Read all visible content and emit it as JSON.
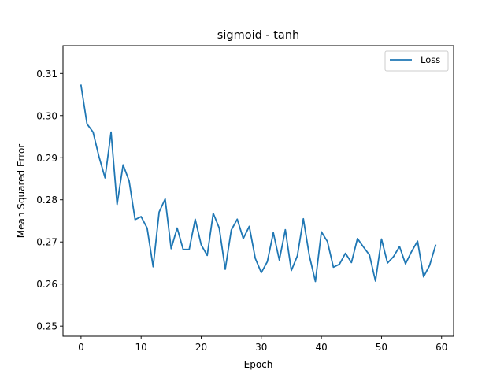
{
  "chart_data": {
    "type": "line",
    "title": "sigmoid - tanh",
    "xlabel": "Epoch",
    "ylabel": "Mean Squared Error",
    "xlim": [
      -3,
      62
    ],
    "ylim": [
      0.2476,
      0.3166
    ],
    "xticks": [
      0,
      10,
      20,
      30,
      40,
      50,
      60
    ],
    "yticks": [
      0.25,
      0.26,
      0.27,
      0.28,
      0.29,
      0.3,
      0.31
    ],
    "ytick_labels": [
      "0.25",
      "0.26",
      "0.27",
      "0.28",
      "0.29",
      "0.30",
      "0.31"
    ],
    "grid": false,
    "legend": {
      "location": "upper right",
      "entries": [
        "Loss"
      ]
    },
    "series": [
      {
        "name": "Loss",
        "color": "#1f77b4",
        "x": [
          0,
          1,
          2,
          3,
          4,
          5,
          6,
          7,
          8,
          9,
          10,
          11,
          12,
          13,
          14,
          15,
          16,
          17,
          18,
          19,
          20,
          21,
          22,
          23,
          24,
          25,
          26,
          27,
          28,
          29,
          30,
          31,
          32,
          33,
          34,
          35,
          36,
          37,
          38,
          39,
          40,
          41,
          42,
          43,
          44,
          45,
          46,
          47,
          48,
          49,
          50,
          51,
          52,
          53,
          54,
          55,
          56,
          57,
          58,
          59
        ],
        "values": [
          0.3072,
          0.298,
          0.2961,
          0.2902,
          0.2852,
          0.2961,
          0.2789,
          0.2883,
          0.2845,
          0.2753,
          0.276,
          0.2733,
          0.2641,
          0.2771,
          0.2802,
          0.2684,
          0.2733,
          0.2682,
          0.2682,
          0.2754,
          0.2693,
          0.2668,
          0.2768,
          0.2733,
          0.2635,
          0.2728,
          0.2754,
          0.2708,
          0.2737,
          0.2661,
          0.2627,
          0.2653,
          0.2722,
          0.2657,
          0.2729,
          0.2632,
          0.2667,
          0.2755,
          0.2667,
          0.2606,
          0.2724,
          0.2701,
          0.264,
          0.2647,
          0.2673,
          0.2651,
          0.2708,
          0.2688,
          0.2669,
          0.2607,
          0.2707,
          0.265,
          0.2665,
          0.2689,
          0.2648,
          0.2677,
          0.2702,
          0.2617,
          0.2644,
          0.2692
        ]
      }
    ]
  }
}
